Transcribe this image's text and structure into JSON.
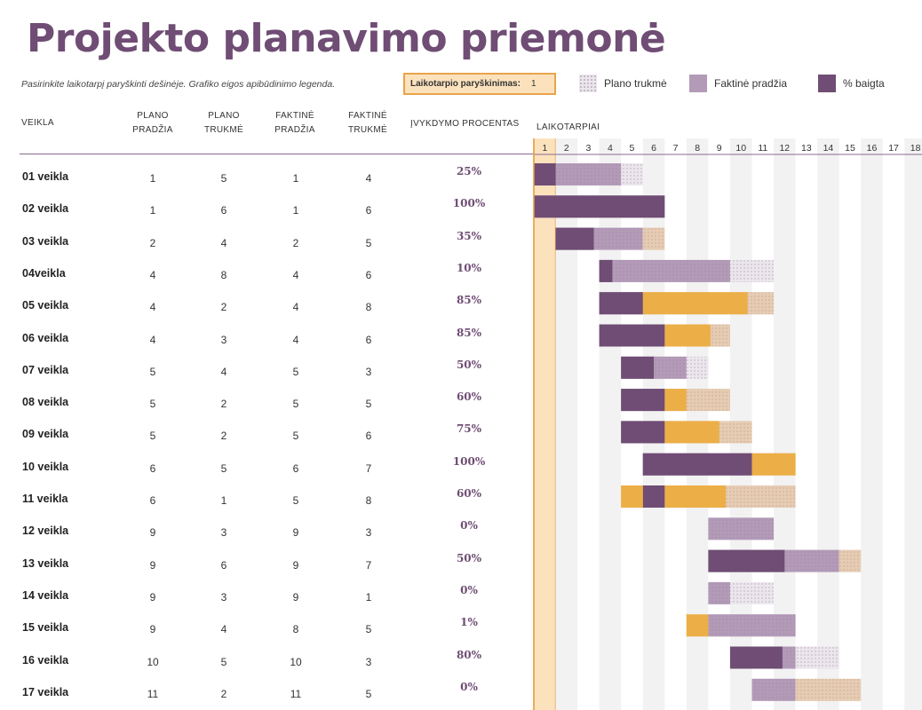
{
  "title": "Projekto planavimo priemonė",
  "subtitle": "Pasirinkite laikotarpį paryškinti dešinėje.  Grafiko eigos apibūdinimo legenda.",
  "highlight": {
    "label": "Laikotarpio paryškinimas:",
    "value": "1"
  },
  "legend": [
    {
      "label": "Plano trukmė",
      "key": "plan"
    },
    {
      "label": "Faktinė pradžia",
      "key": "actual"
    },
    {
      "label": "% baigta",
      "key": "done"
    }
  ],
  "headers": {
    "activity": "VEIKLA",
    "plan_start": [
      "PLANO",
      "PRADŽIA"
    ],
    "plan_duration": [
      "PLANO",
      "TRUKMĖ"
    ],
    "actual_start": [
      "FAKTINĖ",
      "PRADŽIA"
    ],
    "actual_duration": [
      "FAKTINĖ",
      "TRUKMĖ"
    ],
    "percent": "ĮVYKDYMO PROCENTAS",
    "periods": "LAIKOTARPIAI"
  },
  "periods": [
    1,
    2,
    3,
    4,
    5,
    6,
    7,
    8,
    9,
    10,
    11,
    12,
    13,
    14,
    15,
    16,
    17,
    18
  ],
  "highlight_period": 1,
  "colors": {
    "done": "#6f4d74",
    "actual": "#b39bb8",
    "plan": "#ebe6ec",
    "plan_dot": "#b8a8bb",
    "overrun": "#ecae47",
    "overrun_plan": "#e6ccb4",
    "highlight": "#fbe2bd",
    "highlight_border": "#e9a34a",
    "stripe": "#f2f2f2"
  },
  "rows": [
    {
      "name": "01 veikla",
      "plan_start": 1,
      "plan_duration": 5,
      "actual_start": 1,
      "actual_duration": 4,
      "percent": "25%",
      "pct": 0.25
    },
    {
      "name": "02 veikla",
      "plan_start": 1,
      "plan_duration": 6,
      "actual_start": 1,
      "actual_duration": 6,
      "percent": "100%",
      "pct": 1.0
    },
    {
      "name": "03 veikla",
      "plan_start": 2,
      "plan_duration": 4,
      "actual_start": 2,
      "actual_duration": 5,
      "percent": "35%",
      "pct": 0.35
    },
    {
      "name": "04veikla",
      "plan_start": 4,
      "plan_duration": 8,
      "actual_start": 4,
      "actual_duration": 6,
      "percent": "10%",
      "pct": 0.1
    },
    {
      "name": "05 veikla",
      "plan_start": 4,
      "plan_duration": 2,
      "actual_start": 4,
      "actual_duration": 8,
      "percent": "85%",
      "pct": 0.85
    },
    {
      "name": "06 veikla",
      "plan_start": 4,
      "plan_duration": 3,
      "actual_start": 4,
      "actual_duration": 6,
      "percent": "85%",
      "pct": 0.85
    },
    {
      "name": "07 veikla",
      "plan_start": 5,
      "plan_duration": 4,
      "actual_start": 5,
      "actual_duration": 3,
      "percent": "50%",
      "pct": 0.5
    },
    {
      "name": "08 veikla",
      "plan_start": 5,
      "plan_duration": 2,
      "actual_start": 5,
      "actual_duration": 5,
      "percent": "60%",
      "pct": 0.6
    },
    {
      "name": "09 veikla",
      "plan_start": 5,
      "plan_duration": 2,
      "actual_start": 5,
      "actual_duration": 6,
      "percent": "75%",
      "pct": 0.75
    },
    {
      "name": "10 veikla",
      "plan_start": 6,
      "plan_duration": 5,
      "actual_start": 6,
      "actual_duration": 7,
      "percent": "100%",
      "pct": 1.0
    },
    {
      "name": "11 veikla",
      "plan_start": 6,
      "plan_duration": 1,
      "actual_start": 5,
      "actual_duration": 8,
      "percent": "60%",
      "pct": 0.6
    },
    {
      "name": "12 veikla",
      "plan_start": 9,
      "plan_duration": 3,
      "actual_start": 9,
      "actual_duration": 3,
      "percent": "0%",
      "pct": 0.0
    },
    {
      "name": "13 veikla",
      "plan_start": 9,
      "plan_duration": 6,
      "actual_start": 9,
      "actual_duration": 7,
      "percent": "50%",
      "pct": 0.5
    },
    {
      "name": "14 veikla",
      "plan_start": 9,
      "plan_duration": 3,
      "actual_start": 9,
      "actual_duration": 1,
      "percent": "0%",
      "pct": 0.0
    },
    {
      "name": "15 veikla",
      "plan_start": 9,
      "plan_duration": 4,
      "actual_start": 8,
      "actual_duration": 5,
      "percent": "1%",
      "pct": 0.01
    },
    {
      "name": "16 veikla",
      "plan_start": 10,
      "plan_duration": 5,
      "actual_start": 10,
      "actual_duration": 3,
      "percent": "80%",
      "pct": 0.8
    },
    {
      "name": "17 veikla",
      "plan_start": 11,
      "plan_duration": 2,
      "actual_start": 11,
      "actual_duration": 5,
      "percent": "0%",
      "pct": 0.0
    }
  ]
}
